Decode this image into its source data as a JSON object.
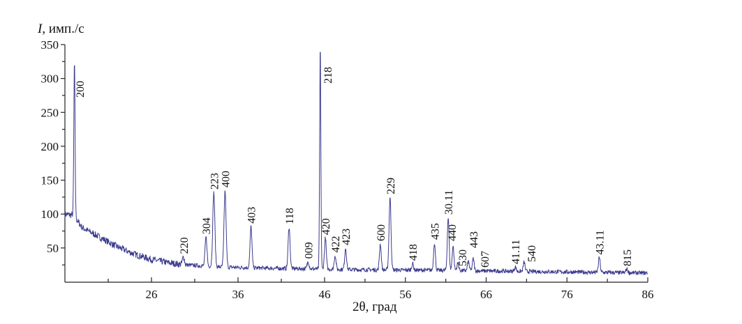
{
  "chart_data": {
    "type": "line",
    "ylabel_italic": "I",
    "ylabel": ", имп./с",
    "xlabel": "2θ, град",
    "xlim": [
      16,
      86
    ],
    "ylim": [
      0,
      350
    ],
    "x_ticks": [
      26,
      36,
      46,
      56,
      66,
      76,
      86
    ],
    "y_ticks": [
      50,
      100,
      150,
      200,
      250,
      300,
      350
    ],
    "grid": false,
    "line_color": "#3b3b8f",
    "background": [
      [
        16,
        100
      ],
      [
        17,
        98
      ],
      [
        18,
        80
      ],
      [
        20,
        66
      ],
      [
        22,
        52
      ],
      [
        24,
        41
      ],
      [
        26,
        33
      ],
      [
        28,
        28
      ],
      [
        30,
        25
      ],
      [
        34,
        22
      ],
      [
        40,
        20
      ],
      [
        50,
        18
      ],
      [
        60,
        17
      ],
      [
        70,
        15.5
      ],
      [
        86,
        13
      ]
    ],
    "peaks": [
      {
        "label": "200",
        "x": 17.1,
        "y": 325
      },
      {
        "label": "220",
        "x": 29.7,
        "y": 37
      },
      {
        "label": "304",
        "x": 32.3,
        "y": 66
      },
      {
        "label": "223",
        "x": 33.2,
        "y": 132
      },
      {
        "label": "400",
        "x": 34.5,
        "y": 135
      },
      {
        "label": "403",
        "x": 37.5,
        "y": 82
      },
      {
        "label": "118",
        "x": 41.9,
        "y": 81
      },
      {
        "label": "009",
        "x": 44.1,
        "y": 30
      },
      {
        "label": "218",
        "x": 45.5,
        "y": 350
      },
      {
        "label": "420",
        "x": 46.1,
        "y": 65
      },
      {
        "label": "422",
        "x": 47.3,
        "y": 39
      },
      {
        "label": "423",
        "x": 48.6,
        "y": 50
      },
      {
        "label": "600",
        "x": 52.9,
        "y": 56
      },
      {
        "label": "229",
        "x": 54.1,
        "y": 125
      },
      {
        "label": "418",
        "x": 56.9,
        "y": 27
      },
      {
        "label": "435",
        "x": 59.6,
        "y": 58
      },
      {
        "label": "30.11",
        "x": 61.3,
        "y": 95
      },
      {
        "label": "440",
        "x": 61.9,
        "y": 53
      },
      {
        "label": "530",
        "x": 62.5,
        "y": 28
      },
      {
        "label": "443",
        "x": 63.8,
        "y": 30
      },
      {
        "label": "607",
        "x": 64.4,
        "y": 34
      },
      {
        "label": "41.11",
        "x": 69.6,
        "y": 22
      },
      {
        "label": "540",
        "x": 70.7,
        "y": 29
      },
      {
        "label": "43.11",
        "x": 80.0,
        "y": 36
      },
      {
        "label": "815",
        "x": 83.4,
        "y": 19
      }
    ]
  }
}
